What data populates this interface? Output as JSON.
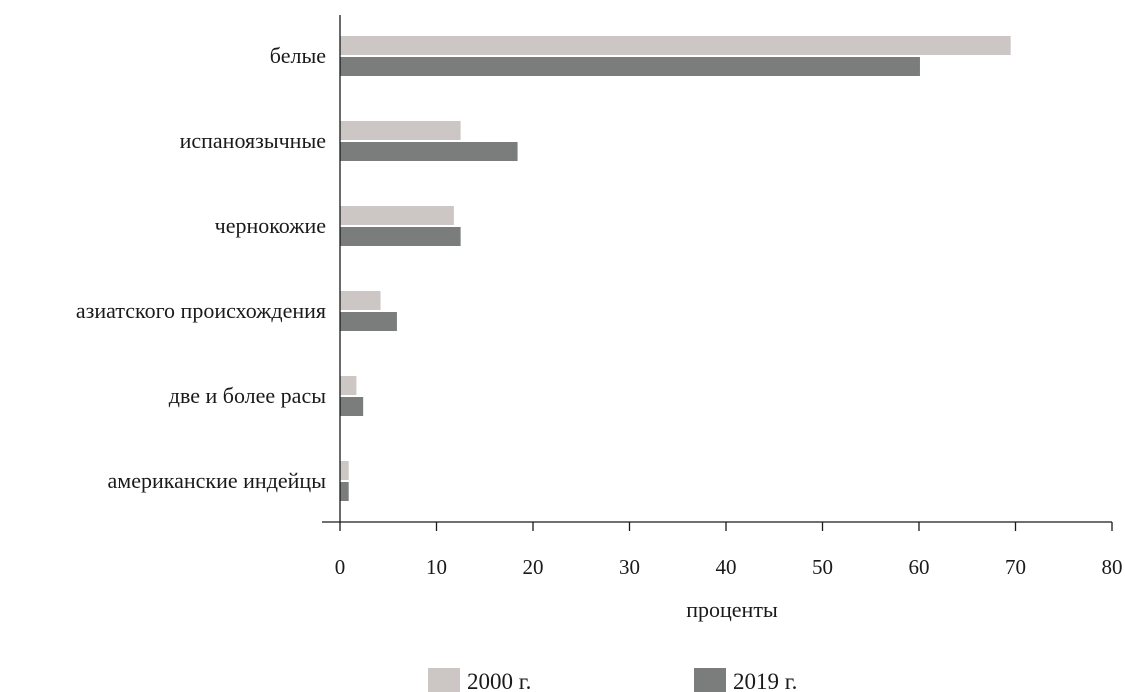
{
  "chart_data": {
    "type": "bar",
    "orientation": "horizontal",
    "categories": [
      "белые",
      "испаноязычные",
      "чернокожие",
      "азиатского происхождения",
      "две и более расы",
      "американские индейцы"
    ],
    "series": [
      {
        "name": "2000 г.",
        "values": [
          69.5,
          12.5,
          11.8,
          4.2,
          1.7,
          0.9
        ],
        "color": "#ccc6c4"
      },
      {
        "name": "2019 г.",
        "values": [
          60.1,
          18.4,
          12.5,
          5.9,
          2.4,
          0.9
        ],
        "color": "#7a7d7c"
      }
    ],
    "xlabel": "проценты",
    "xlim": [
      0,
      80
    ],
    "xticks": [
      0,
      10,
      20,
      30,
      40,
      50,
      60,
      70,
      80
    ],
    "grid": false,
    "legend_position": "bottom"
  }
}
